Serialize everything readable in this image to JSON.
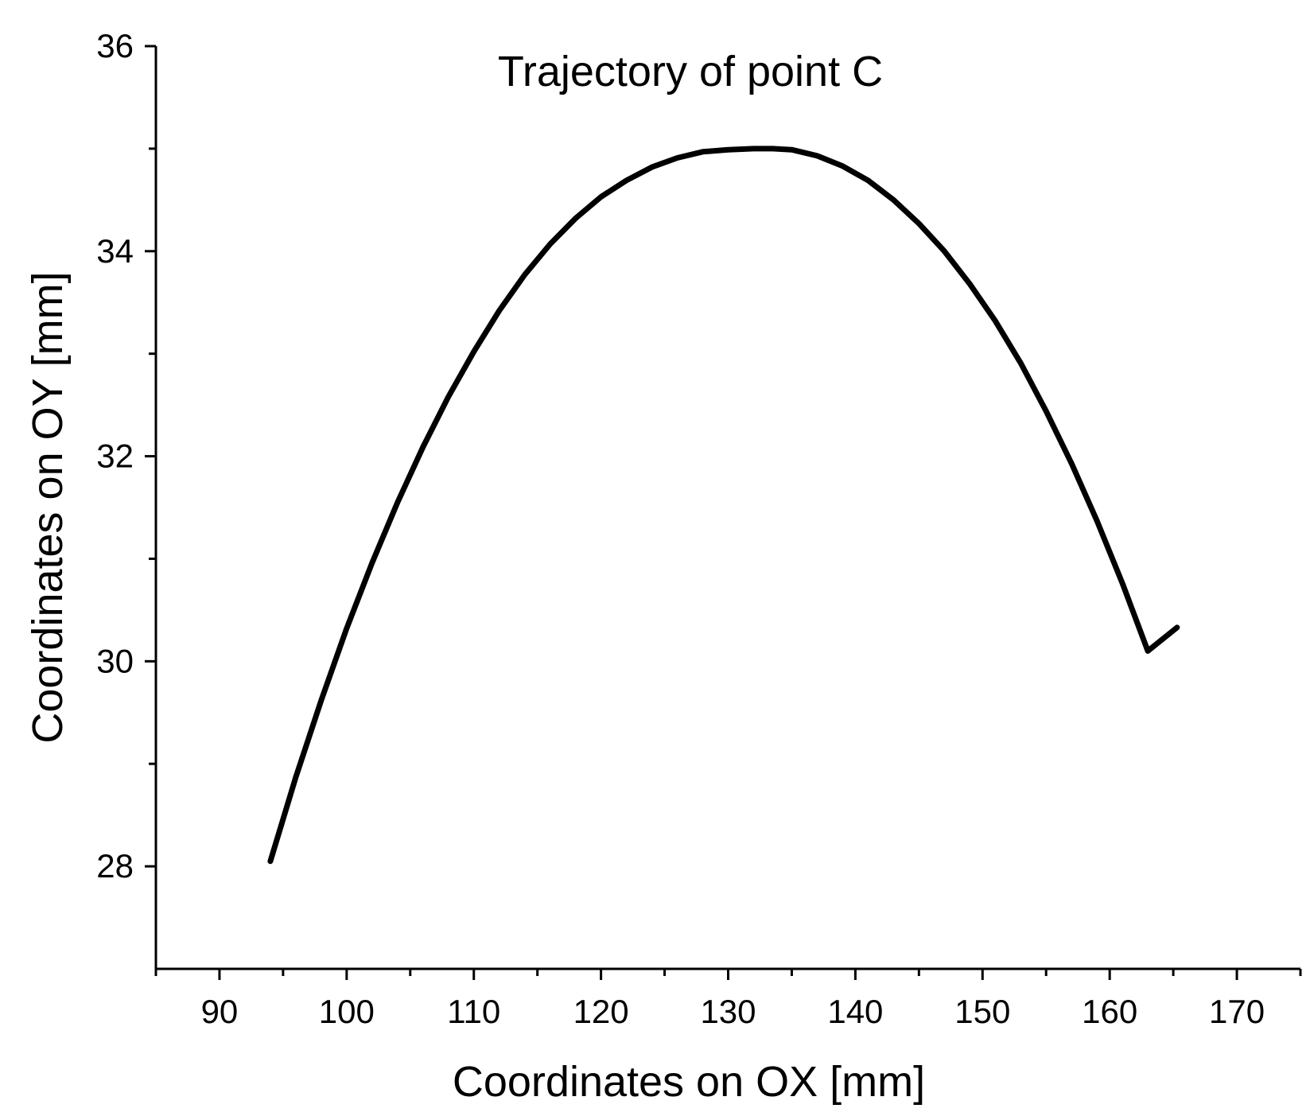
{
  "chart_data": {
    "type": "line",
    "title": "Trajectory of point C",
    "xlabel": "Coordinates on OX [mm]",
    "ylabel": "Coordinates on OY [mm]",
    "xlim": [
      85,
      175
    ],
    "ylim": [
      27,
      36
    ],
    "x_ticks": [
      90,
      100,
      110,
      120,
      130,
      140,
      150,
      160,
      170
    ],
    "x_minor_ticks": [
      85,
      95,
      105,
      115,
      125,
      135,
      145,
      155,
      165,
      175
    ],
    "y_ticks": [
      28,
      30,
      32,
      34,
      36
    ],
    "y_minor_ticks": [
      29,
      31,
      33,
      35
    ],
    "grid": false,
    "line_color": "#000000",
    "series": [
      {
        "x": [
          94.0,
          96.0,
          98.0,
          100.0,
          102.0,
          104.0,
          106.0,
          108.0,
          110.0,
          112.0,
          114.0,
          116.0,
          118.0,
          120.0,
          122.0,
          124.0,
          126.0,
          128.0,
          130.0,
          132.0,
          133.5,
          135.0,
          137.0,
          139.0,
          141.0,
          143.0,
          145.0,
          147.0,
          149.0,
          151.0,
          153.0,
          155.0,
          157.0,
          159.0,
          161.0,
          163.0,
          165.3
        ],
        "y": [
          28.05,
          28.87,
          29.62,
          30.32,
          30.96,
          31.55,
          32.09,
          32.58,
          33.02,
          33.42,
          33.77,
          34.07,
          34.32,
          34.53,
          34.69,
          34.82,
          34.91,
          34.97,
          34.99,
          35.0,
          35.0,
          34.99,
          34.93,
          34.83,
          34.69,
          34.5,
          34.27,
          34.0,
          33.68,
          33.32,
          32.91,
          32.44,
          31.93,
          31.37,
          30.76,
          30.1,
          30.33
        ]
      }
    ]
  }
}
